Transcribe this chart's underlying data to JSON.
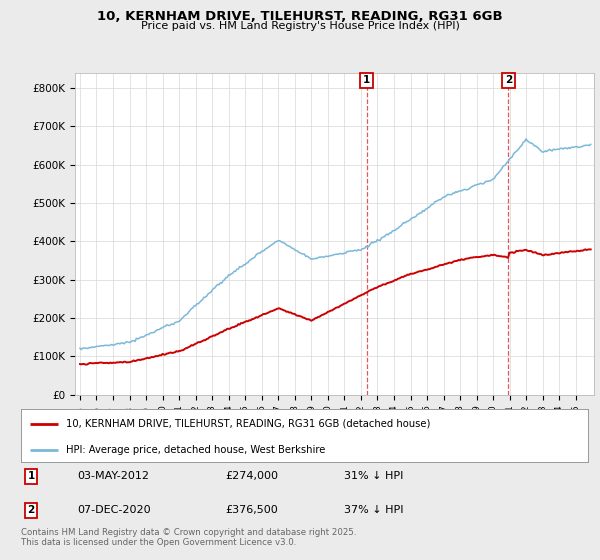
{
  "title": "10, KERNHAM DRIVE, TILEHURST, READING, RG31 6GB",
  "subtitle": "Price paid vs. HM Land Registry's House Price Index (HPI)",
  "background_color": "#ebebeb",
  "plot_bg_color": "#ffffff",
  "y_ticks": [
    0,
    100000,
    200000,
    300000,
    400000,
    500000,
    600000,
    700000,
    800000
  ],
  "y_tick_labels": [
    "£0",
    "£100K",
    "£200K",
    "£300K",
    "£400K",
    "£500K",
    "£600K",
    "£700K",
    "£800K"
  ],
  "ylim": [
    0,
    840000
  ],
  "x_start_year": 1995,
  "x_end_year": 2025,
  "sale1_date": "03-MAY-2012",
  "sale1_price": 274000,
  "sale1_hpi_pct": "31%",
  "sale1_x": 2012.34,
  "sale2_date": "07-DEC-2020",
  "sale2_price": 376500,
  "sale2_hpi_pct": "37%",
  "sale2_x": 2020.92,
  "hpi_color": "#7ab8d9",
  "price_color": "#cc0000",
  "vline_color": "#cc0000",
  "legend_label_price": "10, KERNHAM DRIVE, TILEHURST, READING, RG31 6GB (detached house)",
  "legend_label_hpi": "HPI: Average price, detached house, West Berkshire",
  "footnote": "Contains HM Land Registry data © Crown copyright and database right 2025.\nThis data is licensed under the Open Government Licence v3.0."
}
